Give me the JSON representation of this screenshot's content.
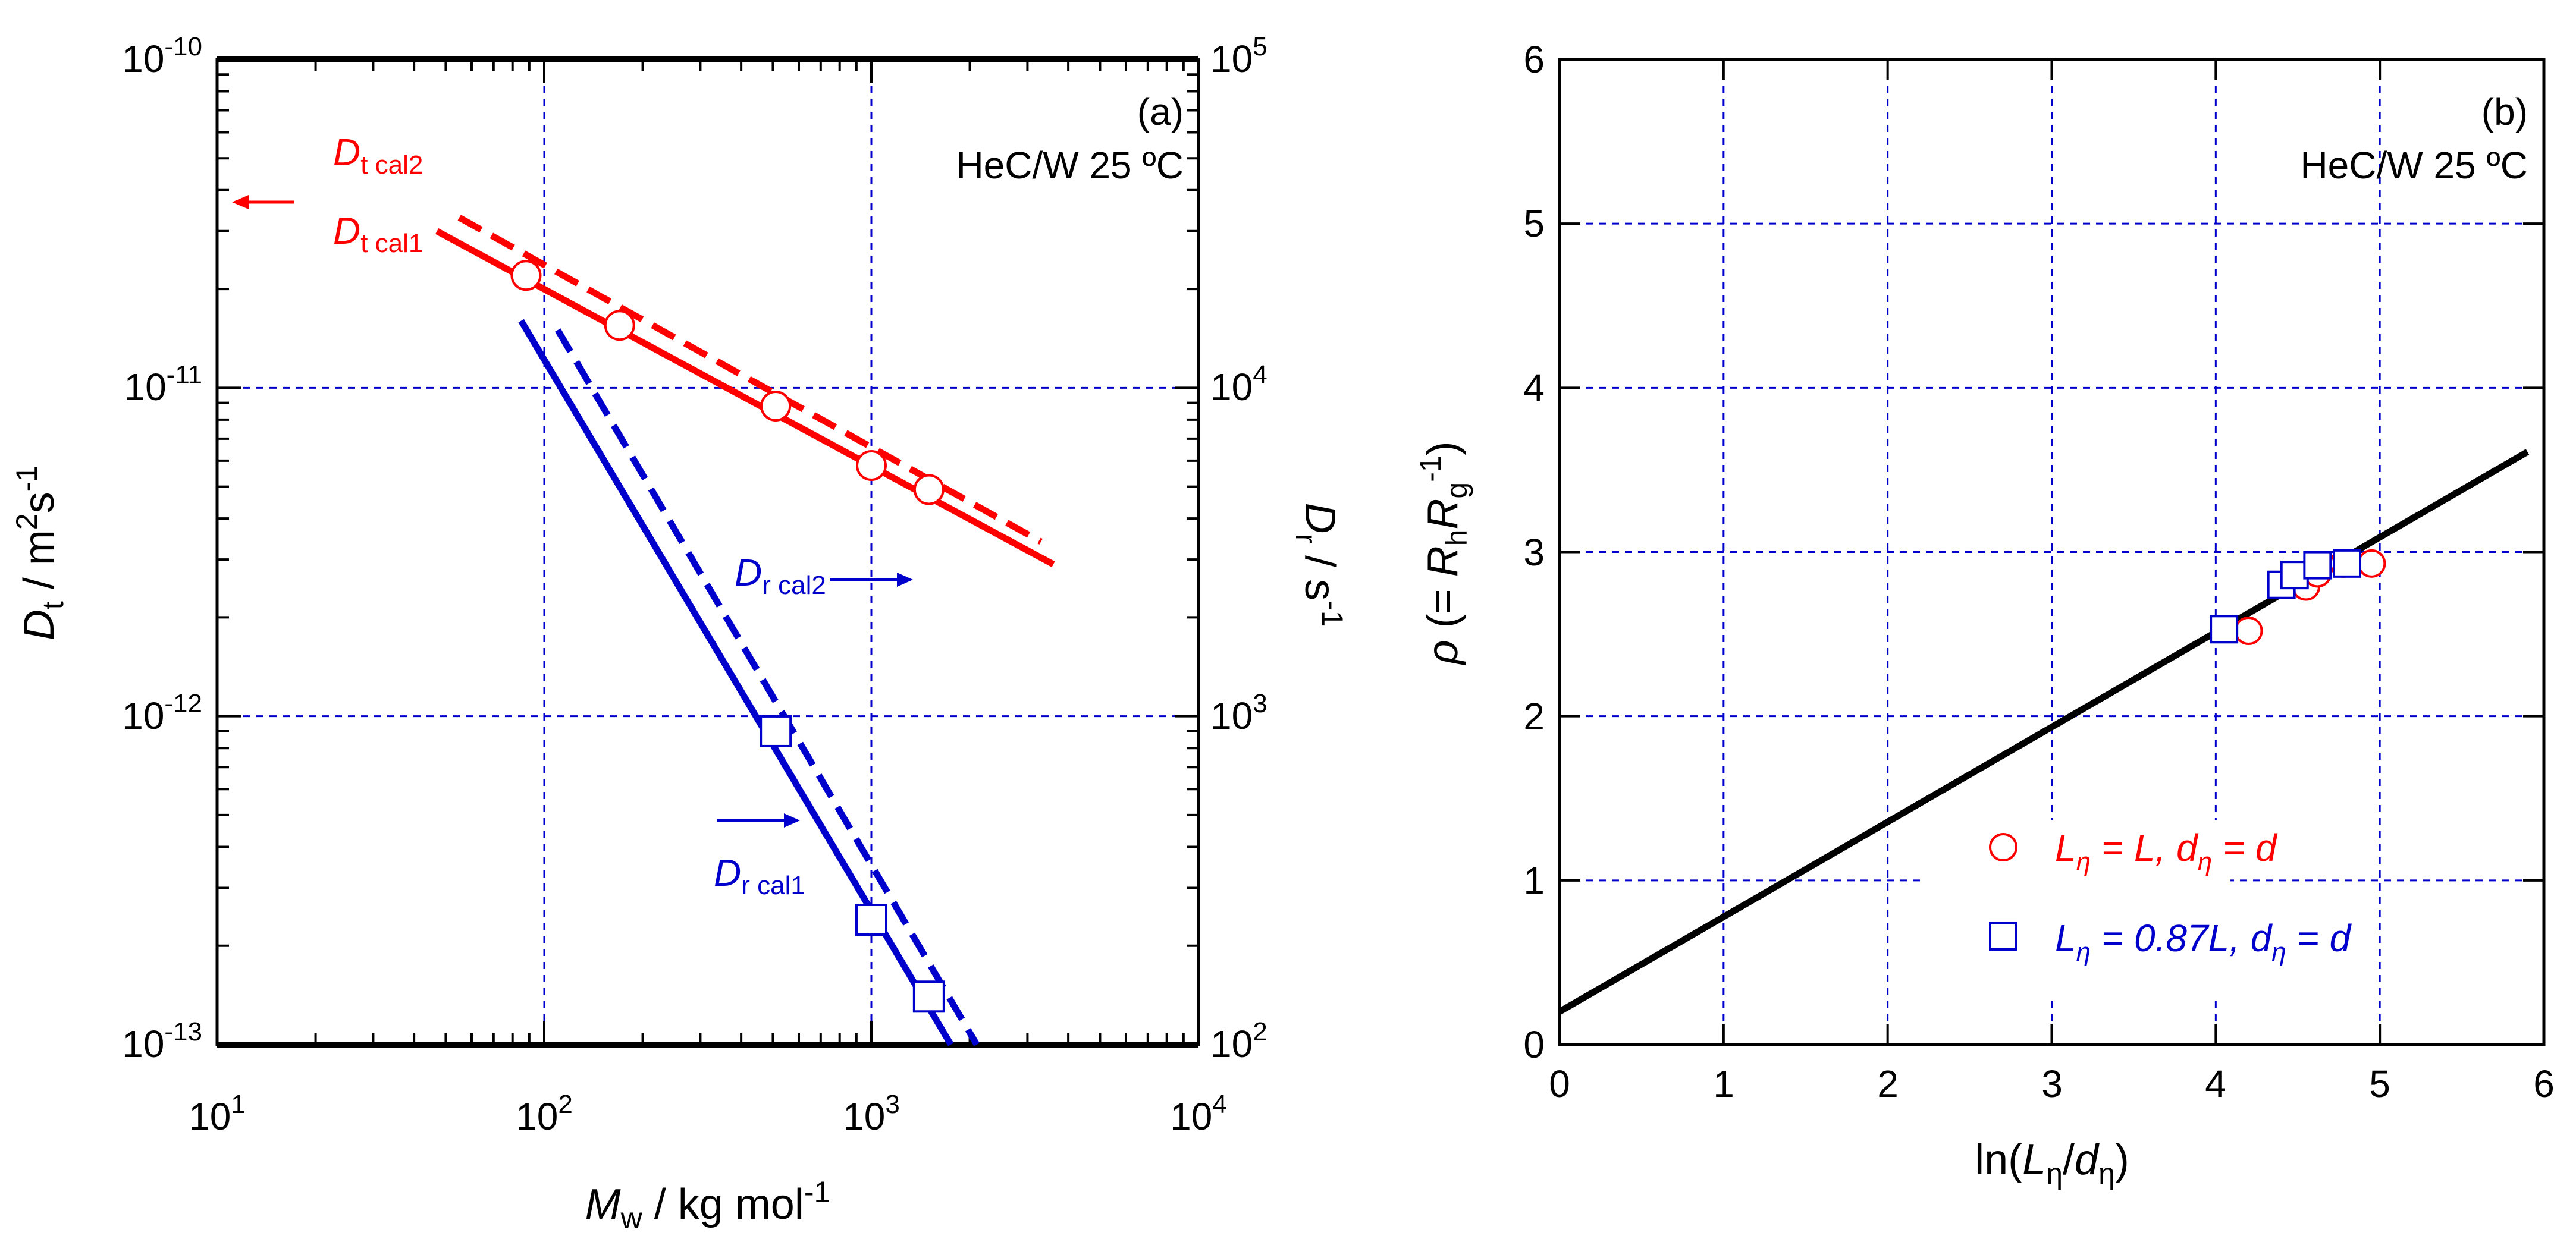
{
  "colors": {
    "red": "#ff0000",
    "blue": "#0000cc",
    "black": "#000000",
    "grid": "#0000cc"
  },
  "panel_a": {
    "tag": "(a)",
    "condition": "HeC/W 25 ºC",
    "labels": {
      "dt_cal2": "D",
      "dt_cal2_sub": "t cal2",
      "dt_cal1": "D",
      "dt_cal1_sub": "t cal1",
      "dr_cal2": "D",
      "dr_cal2_sub": "r cal2",
      "dr_cal1": "D",
      "dr_cal1_sub": "r cal1"
    },
    "xlabel": {
      "main": "M",
      "sub": "w",
      "rest": " / kg mol",
      "sup": "-1"
    },
    "ylabel_left": {
      "main": "D",
      "sub": "t",
      "rest": " / m",
      "sup1": "2",
      "mid": "s",
      "sup2": "-1"
    },
    "ylabel_right": {
      "main": "D",
      "sub": "r",
      "rest": " / s",
      "sup": "-1"
    },
    "xticks": [
      {
        "base": "10",
        "exp": "1"
      },
      {
        "base": "10",
        "exp": "2"
      },
      {
        "base": "10",
        "exp": "3"
      },
      {
        "base": "10",
        "exp": "4"
      }
    ],
    "yticks_left": [
      {
        "base": "10",
        "exp": "-13"
      },
      {
        "base": "10",
        "exp": "-12"
      },
      {
        "base": "10",
        "exp": "-11"
      },
      {
        "base": "10",
        "exp": "-10"
      }
    ],
    "yticks_right": [
      {
        "base": "10",
        "exp": "2"
      },
      {
        "base": "10",
        "exp": "3"
      },
      {
        "base": "10",
        "exp": "4"
      },
      {
        "base": "10",
        "exp": "5"
      }
    ]
  },
  "panel_b": {
    "tag": "(b)",
    "condition": "HeC/W 25 ºC",
    "xlabel": {
      "pre": "ln(",
      "L": "L",
      "Lsub": "η",
      "slash": "/",
      "d": "d",
      "dsub": "η",
      "post": ")"
    },
    "ylabel": {
      "rho": "ρ",
      "pre": " (= ",
      "R1": "R",
      "R1sub": "h",
      "R2": "R",
      "R2sub": "g",
      "sup": "-1",
      "post": ")"
    },
    "xticks": [
      "0",
      "1",
      "2",
      "3",
      "4",
      "5",
      "6"
    ],
    "yticks": [
      "0",
      "1",
      "2",
      "3",
      "4",
      "5",
      "6"
    ],
    "legend": [
      {
        "L": "L",
        "Lsub": "η",
        "eq1": " = L, ",
        "d": "d",
        "dsub": "η",
        "eq2": " = d"
      },
      {
        "L": "L",
        "Lsub": "η",
        "eq1": " = 0.87L, ",
        "d": "d",
        "dsub": "η",
        "eq2": " = d"
      }
    ]
  },
  "chart_data": [
    {
      "type": "scatter",
      "title": "(a) HeC/W 25 ºC",
      "xscale": "log",
      "xlim": [
        10,
        10000
      ],
      "yscale_left": "log",
      "ylim_left": [
        1e-13,
        1e-10
      ],
      "yscale_right": "log",
      "ylim_right": [
        100,
        100000
      ],
      "xlabel": "Mw / kg mol-1",
      "ylabel": "Dt / m2s-1",
      "ylabel_right": "Dr / s-1",
      "series": [
        {
          "name": "Dt data",
          "axis": "left",
          "marker": "circle",
          "color": "red",
          "x": [
            88,
            170,
            510,
            1000,
            1500
          ],
          "y": [
            2.2e-11,
            1.55e-11,
            8.8e-12,
            5.8e-12,
            4.9e-12
          ]
        },
        {
          "name": "Dt cal1",
          "axis": "left",
          "line": "solid",
          "color": "red",
          "x": [
            47,
            3600
          ],
          "y": [
            3e-11,
            2.9e-12
          ]
        },
        {
          "name": "Dt cal2",
          "axis": "left",
          "line": "dashed",
          "color": "red",
          "x": [
            55,
            3300
          ],
          "y": [
            3.3e-11,
            3.4e-12
          ]
        },
        {
          "name": "Dr data",
          "axis": "right",
          "marker": "square",
          "color": "blue",
          "x": [
            510,
            1000,
            1500
          ],
          "y": [
            900,
            240,
            140
          ]
        },
        {
          "name": "Dr cal1",
          "axis": "right",
          "line": "solid",
          "color": "blue",
          "x": [
            85,
            1750
          ],
          "y": [
            16000,
            100
          ]
        },
        {
          "name": "Dr cal2",
          "axis": "right",
          "line": "dashed",
          "color": "blue",
          "x": [
            110,
            2100
          ],
          "y": [
            15000,
            100
          ]
        }
      ]
    },
    {
      "type": "scatter",
      "title": "(b) HeC/W 25 ºC",
      "xlim": [
        0,
        6
      ],
      "ylim": [
        0,
        6
      ],
      "xlabel": "ln(Lη/dη)",
      "ylabel": "ρ (= Rh Rg-1)",
      "series": [
        {
          "name": "Lη = L, dη = d",
          "marker": "circle",
          "color": "red",
          "x": [
            4.2,
            4.55,
            4.62,
            4.78,
            4.95
          ],
          "y": [
            2.52,
            2.79,
            2.87,
            2.93,
            2.93
          ]
        },
        {
          "name": "Lη = 0.87L, dη = d",
          "marker": "square",
          "color": "blue",
          "x": [
            4.05,
            4.4,
            4.48,
            4.62,
            4.8
          ],
          "y": [
            2.53,
            2.8,
            2.86,
            2.92,
            2.93
          ]
        },
        {
          "name": "fit",
          "line": "solid",
          "color": "black",
          "x": [
            0,
            5.9
          ],
          "y": [
            0.2,
            3.61
          ]
        }
      ]
    }
  ]
}
